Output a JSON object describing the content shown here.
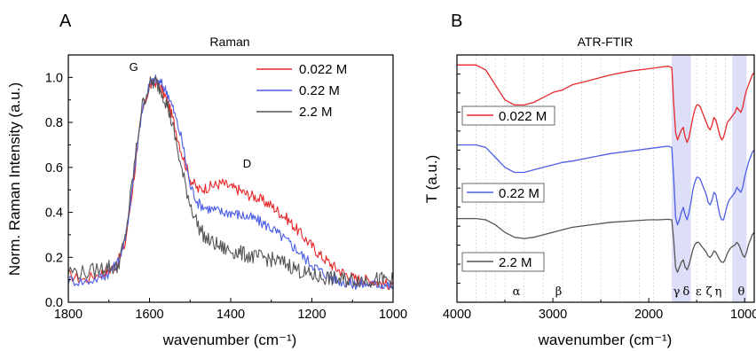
{
  "chart_data": [
    {
      "panel_label": "A",
      "type": "line",
      "title": "Raman",
      "xlabel": "wavenumber (cm⁻¹)",
      "ylabel": "Norm. Raman Intensity (a.u.)",
      "xlim": [
        1800,
        1000
      ],
      "ylim": [
        0.0,
        1.1
      ],
      "xticks": [
        "1800",
        "1600",
        "1400",
        "1200",
        "1000"
      ],
      "yticks": [
        "0.0",
        "0.2",
        "0.4",
        "0.6",
        "0.8",
        "1.0"
      ],
      "annotations": [
        {
          "text": "G",
          "x": 1650,
          "y": 1.03
        },
        {
          "text": "D",
          "x": 1370,
          "y": 0.6
        }
      ],
      "legend_position": "top-right",
      "series": [
        {
          "name": "0.022 M",
          "color": "#e8282b",
          "x": [
            1800,
            1760,
            1720,
            1700,
            1680,
            1660,
            1640,
            1620,
            1600,
            1585,
            1570,
            1555,
            1540,
            1520,
            1500,
            1480,
            1460,
            1440,
            1420,
            1400,
            1380,
            1360,
            1340,
            1320,
            1300,
            1280,
            1260,
            1240,
            1220,
            1200,
            1180,
            1160,
            1140,
            1120,
            1100,
            1080,
            1060,
            1040,
            1020,
            1000
          ],
          "y": [
            0.12,
            0.1,
            0.13,
            0.14,
            0.17,
            0.26,
            0.53,
            0.83,
            0.96,
            0.98,
            0.95,
            0.89,
            0.8,
            0.66,
            0.55,
            0.5,
            0.51,
            0.52,
            0.53,
            0.51,
            0.5,
            0.48,
            0.47,
            0.45,
            0.43,
            0.4,
            0.37,
            0.33,
            0.29,
            0.25,
            0.21,
            0.18,
            0.15,
            0.13,
            0.11,
            0.1,
            0.1,
            0.09,
            0.08,
            0.08
          ]
        },
        {
          "name": "0.22 M",
          "color": "#4d5ee6",
          "x": [
            1800,
            1760,
            1720,
            1700,
            1680,
            1660,
            1640,
            1620,
            1600,
            1585,
            1570,
            1555,
            1540,
            1520,
            1500,
            1480,
            1460,
            1440,
            1420,
            1400,
            1380,
            1360,
            1340,
            1320,
            1300,
            1280,
            1260,
            1240,
            1220,
            1200,
            1180,
            1160,
            1140,
            1120,
            1100,
            1080,
            1060,
            1040,
            1020,
            1000
          ],
          "y": [
            0.1,
            0.09,
            0.11,
            0.13,
            0.17,
            0.27,
            0.55,
            0.84,
            0.97,
            0.99,
            0.97,
            0.93,
            0.85,
            0.72,
            0.52,
            0.44,
            0.42,
            0.41,
            0.4,
            0.4,
            0.39,
            0.38,
            0.37,
            0.35,
            0.33,
            0.3,
            0.27,
            0.24,
            0.2,
            0.17,
            0.14,
            0.12,
            0.1,
            0.09,
            0.08,
            0.08,
            0.08,
            0.08,
            0.08,
            0.07
          ]
        },
        {
          "name": "2.2 M",
          "color": "#555555",
          "x": [
            1800,
            1760,
            1720,
            1700,
            1680,
            1660,
            1640,
            1620,
            1600,
            1585,
            1570,
            1555,
            1540,
            1520,
            1500,
            1480,
            1460,
            1440,
            1420,
            1400,
            1380,
            1360,
            1340,
            1320,
            1300,
            1280,
            1260,
            1240,
            1220,
            1200,
            1180,
            1160,
            1140,
            1120,
            1100,
            1080,
            1060,
            1040,
            1020,
            1000
          ],
          "y": [
            0.14,
            0.13,
            0.15,
            0.16,
            0.15,
            0.28,
            0.57,
            0.86,
            0.97,
            0.98,
            0.94,
            0.87,
            0.76,
            0.58,
            0.44,
            0.34,
            0.28,
            0.26,
            0.24,
            0.23,
            0.22,
            0.21,
            0.2,
            0.2,
            0.19,
            0.18,
            0.17,
            0.15,
            0.13,
            0.12,
            0.11,
            0.11,
            0.1,
            0.1,
            0.1,
            0.1,
            0.1,
            0.1,
            0.1,
            0.1
          ]
        }
      ]
    },
    {
      "panel_label": "B",
      "type": "line",
      "title": "ATR-FTIR",
      "xlabel": "wavenumber (cm⁻¹)",
      "ylabel": "T (a.u.)",
      "xlim": [
        4000,
        900
      ],
      "xticks": [
        "4000",
        "3000",
        "2000",
        "1000"
      ],
      "grid": "dotted vertical lines",
      "highlight_bands": [
        [
          1760,
          1560
        ],
        [
          1130,
          980
        ]
      ],
      "band_labels": [
        {
          "text": "α",
          "x": 3380
        },
        {
          "text": "β",
          "x": 2940
        },
        {
          "text": "γ",
          "x": 1710
        },
        {
          "text": "δ",
          "x": 1610
        },
        {
          "text": "ε",
          "x": 1480
        },
        {
          "text": "ζ",
          "x": 1370
        },
        {
          "text": "η",
          "x": 1275
        },
        {
          "text": "θ",
          "x": 1035
        }
      ],
      "legend_position": "inline labels",
      "series": [
        {
          "name": "0.022 M",
          "color": "#e8282b",
          "x": [
            4000,
            3800,
            3700,
            3600,
            3500,
            3400,
            3300,
            3200,
            3100,
            3000,
            2900,
            2800,
            2600,
            2400,
            2200,
            2000,
            1900,
            1800,
            1760,
            1740,
            1720,
            1700,
            1680,
            1660,
            1640,
            1620,
            1600,
            1580,
            1560,
            1540,
            1520,
            1500,
            1480,
            1460,
            1440,
            1420,
            1400,
            1380,
            1360,
            1340,
            1320,
            1300,
            1280,
            1260,
            1240,
            1220,
            1200,
            1180,
            1160,
            1140,
            1120,
            1100,
            1080,
            1060,
            1040,
            1020,
            1000,
            980,
            960,
            940,
            920,
            900
          ],
          "y": [
            10.0,
            10.0,
            9.8,
            9.2,
            8.6,
            8.4,
            8.4,
            8.5,
            8.7,
            8.9,
            9.0,
            9.2,
            9.4,
            9.6,
            9.75,
            9.85,
            9.9,
            9.95,
            9.9,
            8.5,
            7.3,
            7.0,
            7.2,
            7.4,
            7.5,
            7.1,
            6.9,
            7.1,
            7.5,
            7.9,
            8.2,
            8.4,
            8.4,
            8.3,
            8.1,
            7.9,
            7.7,
            7.5,
            7.4,
            7.6,
            7.9,
            7.8,
            7.5,
            7.2,
            7.0,
            7.1,
            7.4,
            7.7,
            7.8,
            7.9,
            8.0,
            8.1,
            8.3,
            8.2,
            8.1,
            8.3,
            8.7,
            9.0,
            9.2,
            9.4,
            9.6,
            9.7
          ]
        },
        {
          "name": "0.22 M",
          "color": "#4d5ee6",
          "x": [
            4000,
            3800,
            3700,
            3600,
            3500,
            3400,
            3300,
            3200,
            3100,
            3000,
            2900,
            2800,
            2600,
            2400,
            2200,
            2000,
            1900,
            1800,
            1760,
            1740,
            1720,
            1700,
            1680,
            1660,
            1640,
            1620,
            1600,
            1580,
            1560,
            1540,
            1520,
            1500,
            1480,
            1460,
            1440,
            1420,
            1400,
            1380,
            1360,
            1340,
            1320,
            1300,
            1280,
            1260,
            1240,
            1220,
            1200,
            1180,
            1160,
            1140,
            1120,
            1100,
            1080,
            1060,
            1040,
            1020,
            1000,
            980,
            960,
            940,
            920,
            900
          ],
          "y": [
            6.8,
            6.8,
            6.7,
            6.3,
            5.9,
            5.7,
            5.7,
            5.8,
            5.9,
            6.0,
            6.1,
            6.15,
            6.3,
            6.45,
            6.55,
            6.65,
            6.7,
            6.75,
            6.7,
            5.5,
            3.9,
            3.6,
            3.8,
            4.1,
            4.3,
            4.0,
            3.8,
            4.1,
            4.5,
            5.0,
            5.3,
            5.5,
            5.5,
            5.4,
            5.2,
            5.0,
            4.8,
            4.5,
            4.4,
            4.6,
            4.9,
            4.8,
            4.4,
            4.0,
            3.8,
            3.8,
            4.1,
            4.4,
            4.6,
            4.7,
            4.8,
            4.9,
            5.1,
            5.0,
            4.9,
            5.1,
            5.5,
            5.8,
            6.1,
            6.3,
            6.5,
            6.6
          ]
        },
        {
          "name": "2.2 M",
          "color": "#555555",
          "x": [
            4000,
            3800,
            3700,
            3600,
            3500,
            3400,
            3300,
            3200,
            3100,
            3000,
            2900,
            2800,
            2600,
            2400,
            2200,
            2000,
            1900,
            1800,
            1760,
            1740,
            1720,
            1700,
            1680,
            1660,
            1640,
            1620,
            1600,
            1580,
            1560,
            1540,
            1520,
            1500,
            1480,
            1460,
            1440,
            1420,
            1400,
            1380,
            1360,
            1340,
            1320,
            1300,
            1280,
            1260,
            1240,
            1220,
            1200,
            1180,
            1160,
            1140,
            1120,
            1100,
            1080,
            1060,
            1040,
            1020,
            1000,
            980,
            960,
            940,
            920,
            900
          ],
          "y": [
            3.85,
            3.85,
            3.8,
            3.6,
            3.3,
            3.1,
            3.05,
            3.1,
            3.2,
            3.3,
            3.4,
            3.5,
            3.6,
            3.7,
            3.75,
            3.8,
            3.8,
            3.82,
            3.8,
            3.0,
            1.9,
            1.7,
            1.9,
            2.1,
            2.2,
            1.9,
            1.8,
            2.0,
            2.3,
            2.6,
            2.8,
            2.9,
            2.9,
            2.8,
            2.7,
            2.6,
            2.5,
            2.35,
            2.3,
            2.4,
            2.55,
            2.5,
            2.35,
            2.2,
            2.1,
            2.1,
            2.25,
            2.45,
            2.6,
            2.7,
            2.75,
            2.8,
            2.9,
            2.8,
            2.6,
            2.4,
            2.3,
            2.5,
            2.8,
            3.0,
            3.2,
            3.3
          ]
        }
      ]
    }
  ]
}
